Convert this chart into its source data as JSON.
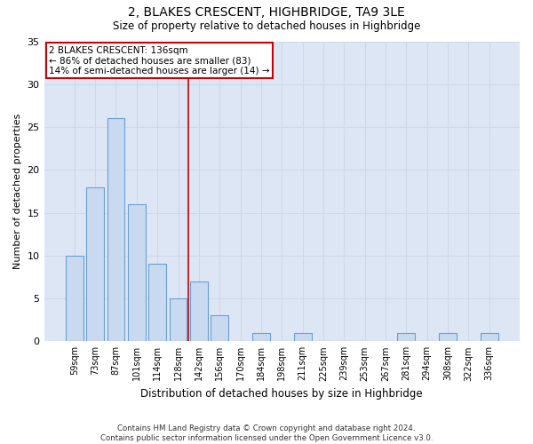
{
  "title": "2, BLAKES CRESCENT, HIGHBRIDGE, TA9 3LE",
  "subtitle": "Size of property relative to detached houses in Highbridge",
  "xlabel": "Distribution of detached houses by size in Highbridge",
  "ylabel": "Number of detached properties",
  "categories": [
    "59sqm",
    "73sqm",
    "87sqm",
    "101sqm",
    "114sqm",
    "128sqm",
    "142sqm",
    "156sqm",
    "170sqm",
    "184sqm",
    "198sqm",
    "211sqm",
    "225sqm",
    "239sqm",
    "253sqm",
    "267sqm",
    "281sqm",
    "294sqm",
    "308sqm",
    "322sqm",
    "336sqm"
  ],
  "values": [
    10,
    18,
    26,
    16,
    9,
    5,
    7,
    3,
    0,
    1,
    0,
    1,
    0,
    0,
    0,
    0,
    1,
    0,
    1,
    0,
    1
  ],
  "bar_color": "#c9d9ef",
  "bar_edgecolor": "#6a9fd8",
  "grid_color": "#d0d8e8",
  "background_color": "#dde6f5",
  "vline_x": 5.5,
  "vline_color": "#cc0000",
  "ylim": [
    0,
    35
  ],
  "yticks": [
    0,
    5,
    10,
    15,
    20,
    25,
    30,
    35
  ],
  "annotation_text": "2 BLAKES CRESCENT: 136sqm\n← 86% of detached houses are smaller (83)\n14% of semi-detached houses are larger (14) →",
  "annotation_box_color": "#cc0000",
  "footer_line1": "Contains HM Land Registry data © Crown copyright and database right 2024.",
  "footer_line2": "Contains public sector information licensed under the Open Government Licence v3.0."
}
